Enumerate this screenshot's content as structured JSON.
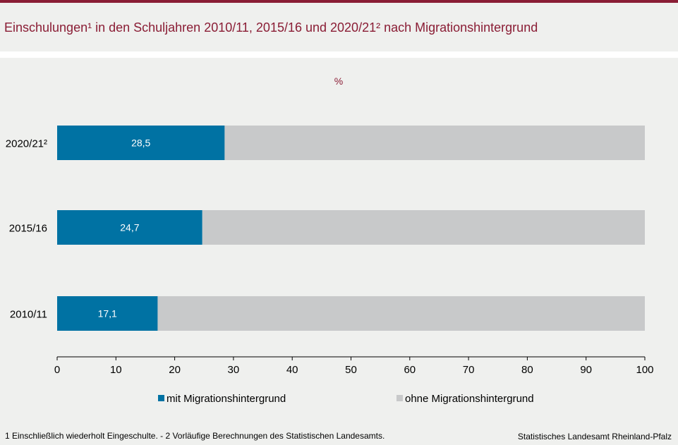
{
  "header": {
    "title": "Einschulungen¹ in den Schuljahren 2010/11, 2015/16 und 2020/21² nach Migrationshintergrund"
  },
  "chart_data": {
    "type": "bar",
    "orientation": "horizontal",
    "stacked": true,
    "unit_label": "%",
    "categories": [
      "2020/21²",
      "2015/16",
      "2010/11"
    ],
    "series": [
      {
        "name": "mit Migrationshintergrund",
        "values": [
          28.5,
          24.7,
          17.1
        ],
        "labels": [
          "28,5",
          "24,7",
          "17,1"
        ],
        "color": "#0072a3"
      },
      {
        "name": "ohne Migrationshintergrund",
        "values": [
          71.5,
          75.3,
          82.9
        ],
        "color": "#c8c9ca"
      }
    ],
    "xlim": [
      0,
      100
    ],
    "xticks": [
      0,
      10,
      20,
      30,
      40,
      50,
      60,
      70,
      80,
      90,
      100
    ],
    "legend_position": "bottom",
    "grid": false
  },
  "footer": {
    "footnote": "1 Einschließlich wiederholt  Eingeschulte.  - 2 Vorläufige  Berechnungen  des Statistischen Landesamts.",
    "source": "Statistisches Landesamt  Rheinland-Pfalz"
  },
  "colors": {
    "accent": "#8a1d35",
    "series_mit": "#0072a3",
    "series_ohne": "#c8c9ca",
    "background": "#eff0ee"
  }
}
